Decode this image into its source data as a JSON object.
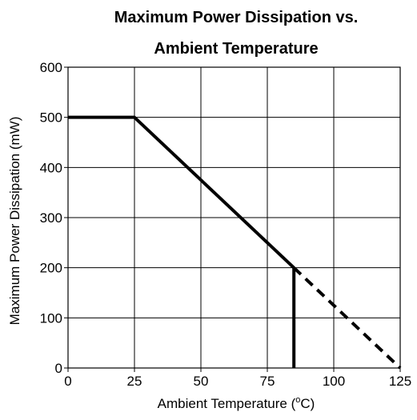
{
  "chart_data": {
    "type": "line",
    "title_line1": "Maximum Power Dissipation vs.",
    "title_line2": "Ambient Temperature",
    "xlabel_prefix": "Ambient Temperature (",
    "xlabel_sup": "o",
    "xlabel_suffix": "C)",
    "ylabel": "Maximum Power Dissipation (mW)",
    "xlim": [
      0,
      125
    ],
    "ylim": [
      0,
      600
    ],
    "xticks": [
      0,
      25,
      50,
      75,
      100,
      125
    ],
    "yticks": [
      0,
      100,
      200,
      300,
      400,
      500,
      600
    ],
    "grid": true,
    "series": [
      {
        "style": "solid",
        "color": "#000000",
        "x": [
          0,
          25,
          85
        ],
        "y": [
          500,
          500,
          200
        ]
      },
      {
        "style": "solid",
        "color": "#000000",
        "x": [
          85,
          85
        ],
        "y": [
          200,
          0
        ]
      },
      {
        "style": "dashed",
        "color": "#000000",
        "x": [
          85,
          125
        ],
        "y": [
          200,
          0
        ]
      }
    ]
  }
}
